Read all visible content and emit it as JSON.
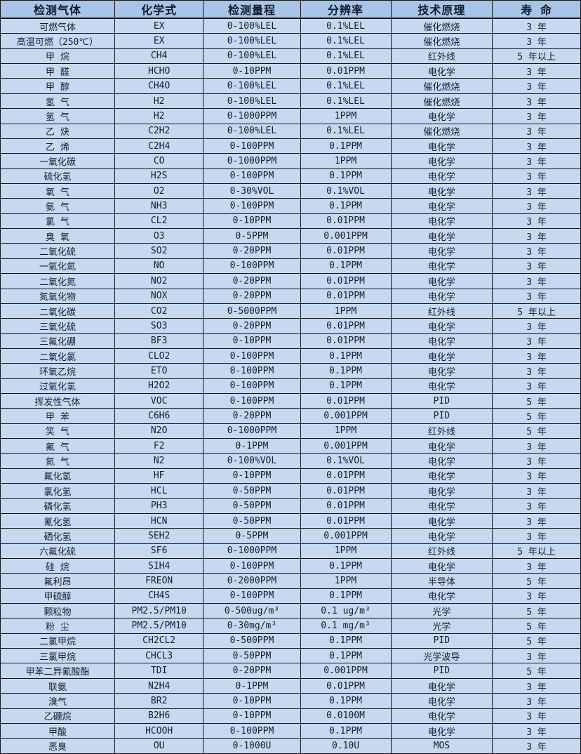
{
  "colors": {
    "header_bg": "#a8c4e6",
    "row_bg": "#c7d9f1",
    "border": "#10151f",
    "text": "#141d30"
  },
  "table": {
    "columns": [
      "检测气体",
      "化学式",
      "检测量程",
      "分辨率",
      "技术原理",
      "寿 命"
    ],
    "rows": [
      [
        "可燃气体",
        "EX",
        "0-100%LEL",
        "0.1%LEL",
        "催化燃烧",
        "3 年"
      ],
      [
        "高温可燃（250℃）",
        "EX",
        "0-100%LEL",
        "0.1%LEL",
        "催化燃烧",
        "3 年"
      ],
      [
        "甲 烷",
        "CH4",
        "0-100%LEL",
        "0.1%LEL",
        "红外线",
        "5 年以上"
      ],
      [
        "甲 醛",
        "HCHO",
        "0-10PPM",
        "0.01PPM",
        "电化学",
        "3 年"
      ],
      [
        "甲 醇",
        "CH4O",
        "0-100%LEL",
        "0.1%LEL",
        "催化燃烧",
        "3 年"
      ],
      [
        "氢 气",
        "H2",
        "0-100%LEL",
        "0.1%LEL",
        "催化燃烧",
        "3 年"
      ],
      [
        "氢 气",
        "H2",
        "0-1000PPM",
        "1PPM",
        "电化学",
        "3 年"
      ],
      [
        "乙 炔",
        "C2H2",
        "0-100%LEL",
        "0.1%LEL",
        "催化燃烧",
        "3 年"
      ],
      [
        "乙 烯",
        "C2H4",
        "0-100PPM",
        "0.1PPM",
        "电化学",
        "3 年"
      ],
      [
        "一氧化碳",
        "CO",
        "0-1000PPM",
        "1PPM",
        "电化学",
        "3 年"
      ],
      [
        "硫化氢",
        "H2S",
        "0-100PPM",
        "0.1PPM",
        "电化学",
        "3 年"
      ],
      [
        "氧 气",
        "O2",
        "0-30%VOL",
        "0.1%VOL",
        "电化学",
        "3 年"
      ],
      [
        "氨 气",
        "NH3",
        "0-100PPM",
        "0.1PPM",
        "电化学",
        "3 年"
      ],
      [
        "氯 气",
        "CL2",
        "0-10PPM",
        "0.01PPM",
        "电化学",
        "3 年"
      ],
      [
        "臭 氧",
        "O3",
        "0-5PPM",
        "0.001PPM",
        "电化学",
        "3 年"
      ],
      [
        "二氧化硫",
        "SO2",
        "0-20PPM",
        "0.01PPM",
        "电化学",
        "3 年"
      ],
      [
        "一氧化氮",
        "NO",
        "0-100PPM",
        "0.1PPM",
        "电化学",
        "3 年"
      ],
      [
        "二氧化氮",
        "NO2",
        "0-20PPM",
        "0.01PPM",
        "电化学",
        "3 年"
      ],
      [
        "氮氧化物",
        "NOX",
        "0-20PPM",
        "0.01PPM",
        "电化学",
        "3 年"
      ],
      [
        "二氧化碳",
        "CO2",
        "0-5000PPM",
        "1PPM",
        "红外线",
        "5 年以上"
      ],
      [
        "三氧化硫",
        "SO3",
        "0-20PPM",
        "0.01PPM",
        "电化学",
        "3 年"
      ],
      [
        "三氟化硼",
        "BF3",
        "0-10PPM",
        "0.01PPM",
        "电化学",
        "3 年"
      ],
      [
        "二氧化氯",
        "CLO2",
        "0-100PPM",
        "0.1PPM",
        "电化学",
        "3 年"
      ],
      [
        "环氧乙烷",
        "ETO",
        "0-100PPM",
        "0.1PPM",
        "电化学",
        "3 年"
      ],
      [
        "过氧化氢",
        "H2O2",
        "0-100PPM",
        "0.1PPM",
        "电化学",
        "3 年"
      ],
      [
        "挥发性气体",
        "VOC",
        "0-100PPM",
        "0.01PPM",
        "PID",
        "5 年"
      ],
      [
        "甲 苯",
        "C6H6",
        "0-20PPM",
        "0.001PPM",
        "PID",
        "5 年"
      ],
      [
        "笑 气",
        "N2O",
        "0-1000PPM",
        "1PPM",
        "红外线",
        "5 年"
      ],
      [
        "氟 气",
        "F2",
        "0-1PPM",
        "0.001PPM",
        "电化学",
        "3 年"
      ],
      [
        "氮 气",
        "N2",
        "0-100%VOL",
        "0.1%VOL",
        "电化学",
        "3 年"
      ],
      [
        "氟化氢",
        "HF",
        "0-10PPM",
        "0.01PPM",
        "电化学",
        "3 年"
      ],
      [
        "氯化氢",
        "HCL",
        "0-50PPM",
        "0.01PPM",
        "电化学",
        "3 年"
      ],
      [
        "磷化氢",
        "PH3",
        "0-50PPM",
        "0.01PPM",
        "电化学",
        "3 年"
      ],
      [
        "氰化氢",
        "HCN",
        "0-50PPM",
        "0.01PPM",
        "电化学",
        "3 年"
      ],
      [
        "硒化氢",
        "SEH2",
        "0-5PPM",
        "0.001PPM",
        "电化学",
        "3 年"
      ],
      [
        "六氟化硫",
        "SF6",
        "0-1000PPM",
        "1PPM",
        "红外线",
        "5 年以上"
      ],
      [
        "硅 烷",
        "SIH4",
        "0-100PPM",
        "0.1PPM",
        "电化学",
        "3 年"
      ],
      [
        "氟利昂",
        "FREON",
        "0-2000PPM",
        "1PPM",
        "半导体",
        "5 年"
      ],
      [
        "甲硫醇",
        "CH4S",
        "0-100PPM",
        "0.1PPM",
        "电化学",
        "3 年"
      ],
      [
        "颗粒物",
        "PM2.5/PM10",
        "0-500ug/m³",
        "0.1 ug/m³",
        "光学",
        "5 年"
      ],
      [
        "粉 尘",
        "PM2.5/PM10",
        "0-30mg/m³",
        "0.1 mg/m³",
        "光学",
        "5 年"
      ],
      [
        "二氯甲烷",
        "CH2CL2",
        "0-500PPM",
        "0.1PPM",
        "PID",
        "5 年"
      ],
      [
        "三氯甲烷",
        "CHCL3",
        "0-50PPM",
        "0.1PPM",
        "光学波导",
        "3 年"
      ],
      [
        "甲苯二异氰酸酯",
        "TDI",
        "0-20PPM",
        "0.001PPM",
        "PID",
        "5 年"
      ],
      [
        "联氨",
        "N2H4",
        "0-1PPM",
        "0.01PPM",
        "电化学",
        "3 年"
      ],
      [
        "溴气",
        "BR2",
        "0-10PPM",
        "0.1PPM",
        "电化学",
        "3 年"
      ],
      [
        "乙硼烷",
        "B2H6",
        "0-10PPM",
        "0.0100M",
        "电化学",
        "3 年"
      ],
      [
        "甲酸",
        "HCOOH",
        "0-100PPM",
        "0.1PPM",
        "电化学",
        "3 年"
      ],
      [
        "恶臭",
        "OU",
        "0-1000U",
        "0.10U",
        "MOS",
        "3 年"
      ]
    ]
  }
}
